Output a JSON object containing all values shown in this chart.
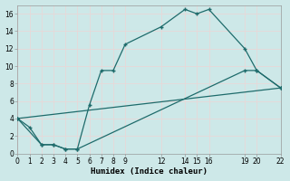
{
  "xlabel": "Humidex (Indice chaleur)",
  "bg_color": "#cde8e8",
  "grid_color": "#b0d0d0",
  "line_color": "#1e6b6b",
  "xlim": [
    0,
    22
  ],
  "ylim": [
    0,
    17
  ],
  "xticks": [
    0,
    1,
    2,
    3,
    4,
    5,
    6,
    7,
    8,
    9,
    12,
    14,
    15,
    16,
    19,
    20,
    22
  ],
  "yticks": [
    0,
    2,
    4,
    6,
    8,
    10,
    12,
    14,
    16
  ],
  "curve1_x": [
    0,
    1,
    2,
    3,
    4,
    5,
    6,
    7,
    8,
    9,
    12,
    14,
    15,
    16,
    19,
    20,
    22
  ],
  "curve1_y": [
    4,
    3,
    1,
    1,
    0.5,
    0.5,
    5.5,
    9.5,
    9.5,
    12.5,
    14.5,
    16.5,
    16.0,
    16.5,
    12.0,
    9.5,
    7.5
  ],
  "curve2_x": [
    0,
    2,
    3,
    4,
    5,
    19,
    20,
    22
  ],
  "curve2_y": [
    4,
    1,
    1,
    0.5,
    0.5,
    9.5,
    9.5,
    7.5
  ],
  "curve3_x": [
    0,
    22
  ],
  "curve3_y": [
    4,
    7.5
  ]
}
